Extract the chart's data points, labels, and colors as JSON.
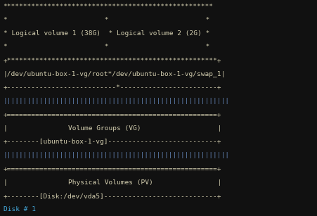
{
  "bg_color": "#111111",
  "text_color": "#d4cfb0",
  "pipe_color": "#6688bb",
  "disk_color": "#44aadd",
  "figsize": [
    4.52,
    3.07
  ],
  "dpi": 100,
  "font_size": 6.8,
  "lines": [
    {
      "text": "****************************************************",
      "color": "#d4cfb0"
    },
    {
      "text": "*                        *                        *",
      "color": "#d4cfb0"
    },
    {
      "text": "* Logical volume 1 (38G)  * Logical volume 2 (2G) *",
      "color": "#d4cfb0"
    },
    {
      "text": "*                        *                        *",
      "color": "#d4cfb0"
    },
    {
      "text": "+****************************************************+",
      "color": "#d4cfb0"
    },
    {
      "text": "|/dev/ubuntu-box-1-vg/root*/dev/ubuntu-box-1-vg/swap_1|",
      "color": "#d4cfb0"
    },
    {
      "text": "+---------------------------*------------------------+",
      "color": "#d4cfb0"
    },
    {
      "text": "||||||||||||||||||||||||||||||||||||||||||||||||||||||||",
      "color": "#6688bb"
    },
    {
      "text": "+====================================================+",
      "color": "#d4cfb0"
    },
    {
      "text": "|               Volume Groups (VG)                   |",
      "color": "#d4cfb0"
    },
    {
      "text": "+--------[ubuntu-box-1-vg]---------------------------+",
      "color": "#d4cfb0"
    },
    {
      "text": "||||||||||||||||||||||||||||||||||||||||||||||||||||||||",
      "color": "#6688bb"
    },
    {
      "text": "+====================================================+",
      "color": "#d4cfb0"
    },
    {
      "text": "|               Physical Volumes (PV)                |",
      "color": "#d4cfb0"
    },
    {
      "text": "+--------[Disk:/dev/vda5]----------------------------+",
      "color": "#d4cfb0"
    },
    {
      "text": "Disk # 1",
      "color": "#44aadd"
    }
  ]
}
